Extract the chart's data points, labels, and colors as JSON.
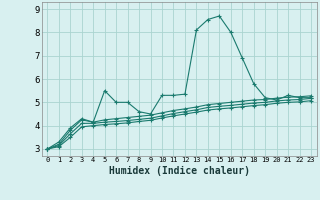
{
  "xlabel": "Humidex (Indice chaleur)",
  "bg_color": "#d8f0f0",
  "grid_color": "#aad4d0",
  "line_color": "#1a7a6e",
  "xlim": [
    -0.5,
    23.5
  ],
  "ylim": [
    2.7,
    9.3
  ],
  "yticks": [
    3,
    4,
    5,
    6,
    7,
    8,
    9
  ],
  "xticks": [
    0,
    1,
    2,
    3,
    4,
    5,
    6,
    7,
    8,
    9,
    10,
    11,
    12,
    13,
    14,
    15,
    16,
    17,
    18,
    19,
    20,
    21,
    22,
    23
  ],
  "series": [
    {
      "x": [
        0,
        1,
        2,
        3,
        4,
        5,
        6,
        7,
        8,
        9,
        10,
        11,
        12,
        13,
        14,
        15,
        16,
        17,
        18,
        19,
        20,
        21,
        22,
        23
      ],
      "y": [
        3.0,
        3.3,
        3.9,
        4.3,
        4.15,
        5.5,
        5.0,
        5.0,
        4.6,
        4.5,
        5.3,
        5.3,
        5.35,
        8.1,
        8.55,
        8.7,
        8.0,
        6.9,
        5.8,
        5.2,
        5.1,
        5.3,
        5.2,
        5.2
      ]
    },
    {
      "x": [
        0,
        1,
        2,
        3,
        4,
        5,
        6,
        7,
        8,
        9,
        10,
        11,
        12,
        13,
        14,
        15,
        16,
        17,
        18,
        19,
        20,
        21,
        22,
        23
      ],
      "y": [
        3.0,
        3.2,
        3.8,
        4.25,
        4.15,
        4.25,
        4.3,
        4.35,
        4.4,
        4.45,
        4.55,
        4.65,
        4.72,
        4.8,
        4.9,
        4.95,
        5.0,
        5.05,
        5.1,
        5.12,
        5.18,
        5.22,
        5.24,
        5.28
      ]
    },
    {
      "x": [
        0,
        1,
        2,
        3,
        4,
        5,
        6,
        7,
        8,
        9,
        10,
        11,
        12,
        13,
        14,
        15,
        16,
        17,
        18,
        19,
        20,
        21,
        22,
        23
      ],
      "y": [
        3.0,
        3.15,
        3.65,
        4.1,
        4.1,
        4.15,
        4.18,
        4.22,
        4.27,
        4.32,
        4.42,
        4.52,
        4.6,
        4.68,
        4.78,
        4.83,
        4.87,
        4.92,
        4.97,
        5.0,
        5.06,
        5.1,
        5.12,
        5.17
      ]
    },
    {
      "x": [
        0,
        1,
        2,
        3,
        4,
        5,
        6,
        7,
        8,
        9,
        10,
        11,
        12,
        13,
        14,
        15,
        16,
        17,
        18,
        19,
        20,
        21,
        22,
        23
      ],
      "y": [
        3.0,
        3.1,
        3.5,
        3.95,
        4.0,
        4.05,
        4.08,
        4.12,
        4.18,
        4.23,
        4.33,
        4.42,
        4.5,
        4.58,
        4.67,
        4.72,
        4.76,
        4.81,
        4.86,
        4.9,
        4.96,
        5.0,
        5.02,
        5.07
      ]
    }
  ]
}
